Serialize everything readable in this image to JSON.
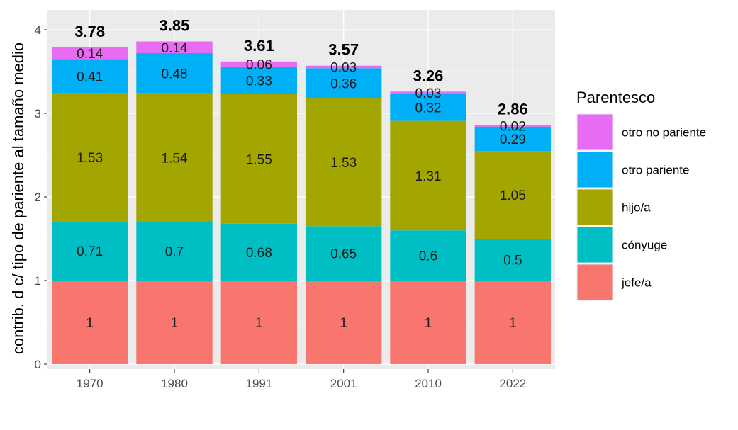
{
  "chart_data": {
    "type": "bar",
    "stacked": true,
    "title": "",
    "xlabel": "",
    "ylabel": "contrib. d c/ tipo de pariente al tamaño medio",
    "ylim": [
      0,
      4.2
    ],
    "yticks": [
      0,
      1,
      2,
      3,
      4
    ],
    "categories": [
      "1970",
      "1980",
      "1991",
      "2001",
      "2010",
      "2022"
    ],
    "series": [
      {
        "name": "jefe/a",
        "color": "#F8766D",
        "values": [
          1,
          1,
          1,
          1,
          1,
          1
        ],
        "labels": [
          "1",
          "1",
          "1",
          "1",
          "1",
          "1"
        ]
      },
      {
        "name": "cónyuge",
        "color": "#00BFC4",
        "values": [
          0.71,
          0.7,
          0.68,
          0.65,
          0.6,
          0.5
        ],
        "labels": [
          "0.71",
          "0.7",
          "0.68",
          "0.65",
          "0.6",
          "0.5"
        ]
      },
      {
        "name": "hijo/a",
        "color": "#A3A500",
        "values": [
          1.53,
          1.54,
          1.55,
          1.53,
          1.31,
          1.05
        ],
        "labels": [
          "1.53",
          "1.54",
          "1.55",
          "1.53",
          "1.31",
          "1.05"
        ]
      },
      {
        "name": "otro pariente",
        "color": "#00B0F6",
        "values": [
          0.41,
          0.48,
          0.33,
          0.36,
          0.32,
          0.29
        ],
        "labels": [
          "0.41",
          "0.48",
          "0.33",
          "0.36",
          "0.32",
          "0.29"
        ]
      },
      {
        "name": "otro no pariente",
        "color": "#E76BF3",
        "values": [
          0.14,
          0.14,
          0.06,
          0.03,
          0.03,
          0.02
        ],
        "labels": [
          "0.14",
          "0.14",
          "0.06",
          "0.03",
          "0.03",
          "0.02"
        ]
      }
    ],
    "totals": [
      "3.78",
      "3.85",
      "3.61",
      "3.57",
      "3.26",
      "2.86"
    ],
    "legend": {
      "title": "Parentesco",
      "position": "right",
      "entries": [
        "otro no pariente",
        "otro pariente",
        "hijo/a",
        "cónyuge",
        "jefe/a"
      ]
    },
    "panel_background": "#EBEBEB",
    "grid_color": "#FFFFFF",
    "grid": true
  }
}
